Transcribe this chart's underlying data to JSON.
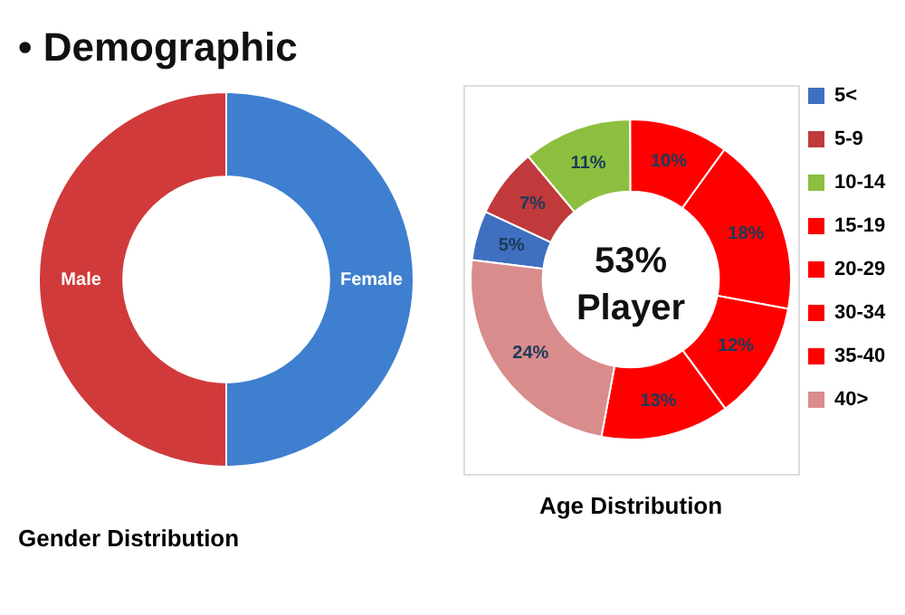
{
  "chart_data": [
    {
      "type": "donut",
      "title": "Gender Distribution",
      "annotations": [
        "• Demographic"
      ],
      "categories": [
        "Male",
        "Female"
      ],
      "values": [
        50,
        50
      ],
      "colors": [
        "#d03a3a",
        "#3f7fd0"
      ],
      "legend": false
    },
    {
      "type": "donut",
      "title": "Age Distribution",
      "annotations": [
        "53% Player"
      ],
      "categories": [
        "5<",
        "5-9",
        "10-14",
        "15-19",
        "20-29",
        "30-34",
        "35-40",
        "40>"
      ],
      "values": [
        5,
        7,
        11,
        10,
        18,
        12,
        13,
        24
      ],
      "value_labels": [
        "5%",
        "7%",
        "11%",
        "10%",
        "18%",
        "12%",
        "13%",
        "24%"
      ],
      "colors": [
        "#3f6fbf",
        "#c0393b",
        "#8cbf3f",
        "#ff0000",
        "#ff0000",
        "#ff0000",
        "#ff0000",
        "#d98c8c"
      ],
      "legend": "right"
    }
  ]
}
